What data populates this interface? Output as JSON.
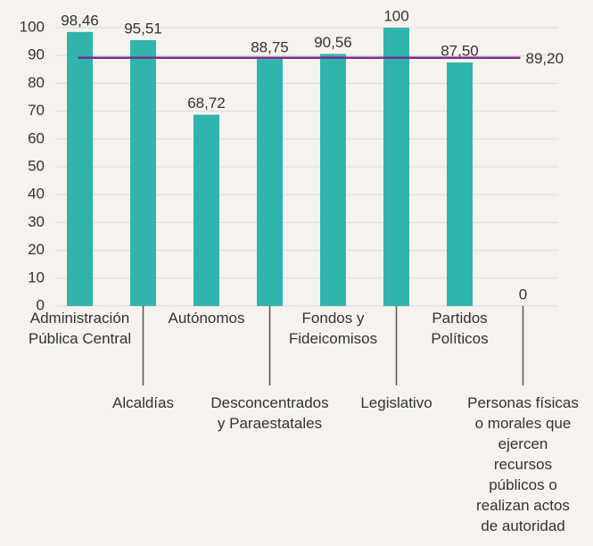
{
  "chart_data": {
    "type": "bar",
    "categories": [
      "Administración\nPública Central",
      "Alcaldías",
      "Autónomos",
      "Desconcentrados\ny Paraestatales",
      "Fondos y\nFideicomisos",
      "Legislativo",
      "Partidos\nPolíticos",
      "Personas físicas\no morales que\nejercen\nrecursos\npúblicos o\nrealizan actos\nde autoridad"
    ],
    "values": [
      98.46,
      95.51,
      68.72,
      88.75,
      90.56,
      100,
      87.5,
      0
    ],
    "value_labels": [
      "98,46",
      "95,51",
      "68,72",
      "88,75",
      "90,56",
      "100",
      "87,50",
      "0"
    ],
    "color": "#2fb5ad",
    "reference_line": {
      "value": 89.2,
      "label": "89,20",
      "color": "#7b2d8b"
    },
    "ylim": [
      0,
      100
    ],
    "yticks": [
      0,
      10,
      20,
      30,
      40,
      50,
      60,
      70,
      80,
      90,
      100
    ],
    "grid": true
  }
}
